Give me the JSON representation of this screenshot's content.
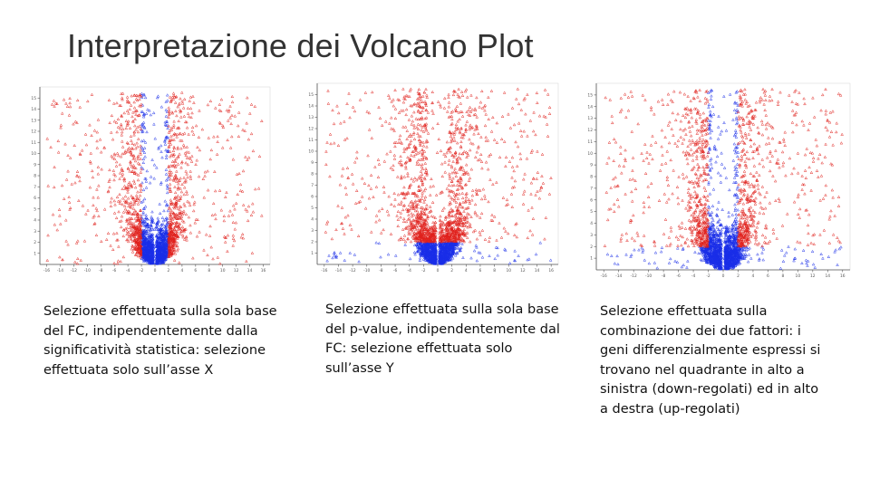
{
  "slide": {
    "title": "Interpretazione dei Volcano Plot"
  },
  "captions": [
    {
      "text": "Selezione effettuata sulla sola base del FC, indipendentemente dalla significatività statistica: selezione effettuata solo sull’asse X"
    },
    {
      "text": "Selezione effettuata sulla sola base del p-value, indipendentemente dal FC: selezione effettuata solo sull’asse Y"
    },
    {
      "text": "Selezione effettuata sulla combinazione dei due fattori: i geni differenzialmente espressi si trovano nel quadrante in alto a sinistra (down-regolati) ed in alto a destra (up-regolati)"
    }
  ],
  "colors": {
    "selected": "#e0201c",
    "not_selected": "#1a2ee8",
    "axis": "#555555"
  },
  "chart_data": [
    {
      "type": "scatter",
      "selection": "fold-change",
      "xlim": [
        -17,
        17
      ],
      "ylim": [
        0,
        16
      ],
      "xticks": [
        -16,
        -14,
        -12,
        -10,
        -8,
        -6,
        -4,
        -2,
        0,
        2,
        4,
        6,
        8,
        10,
        12,
        14,
        16
      ],
      "yticks": [
        1,
        2,
        3,
        4,
        5,
        6,
        7,
        8,
        9,
        10,
        11,
        12,
        13,
        14,
        15
      ],
      "fc_threshold": 2,
      "p_threshold": null
    },
    {
      "type": "scatter",
      "selection": "p-value",
      "xlim": [
        -17,
        17
      ],
      "ylim": [
        0,
        16
      ],
      "xticks": [
        -16,
        -14,
        -12,
        -10,
        -8,
        -6,
        -4,
        -2,
        0,
        2,
        4,
        6,
        8,
        10,
        12,
        14,
        16
      ],
      "yticks": [
        1,
        2,
        3,
        4,
        5,
        6,
        7,
        8,
        9,
        10,
        11,
        12,
        13,
        14,
        15
      ],
      "fc_threshold": null,
      "p_threshold": 2
    },
    {
      "type": "scatter",
      "selection": "combined",
      "xlim": [
        -17,
        17
      ],
      "ylim": [
        0,
        16
      ],
      "xticks": [
        -16,
        -14,
        -12,
        -10,
        -8,
        -6,
        -4,
        -2,
        0,
        2,
        4,
        6,
        8,
        10,
        12,
        14,
        16
      ],
      "yticks": [
        1,
        2,
        3,
        4,
        5,
        6,
        7,
        8,
        9,
        10,
        11,
        12,
        13,
        14,
        15
      ],
      "fc_threshold": 2,
      "p_threshold": 2
    }
  ]
}
